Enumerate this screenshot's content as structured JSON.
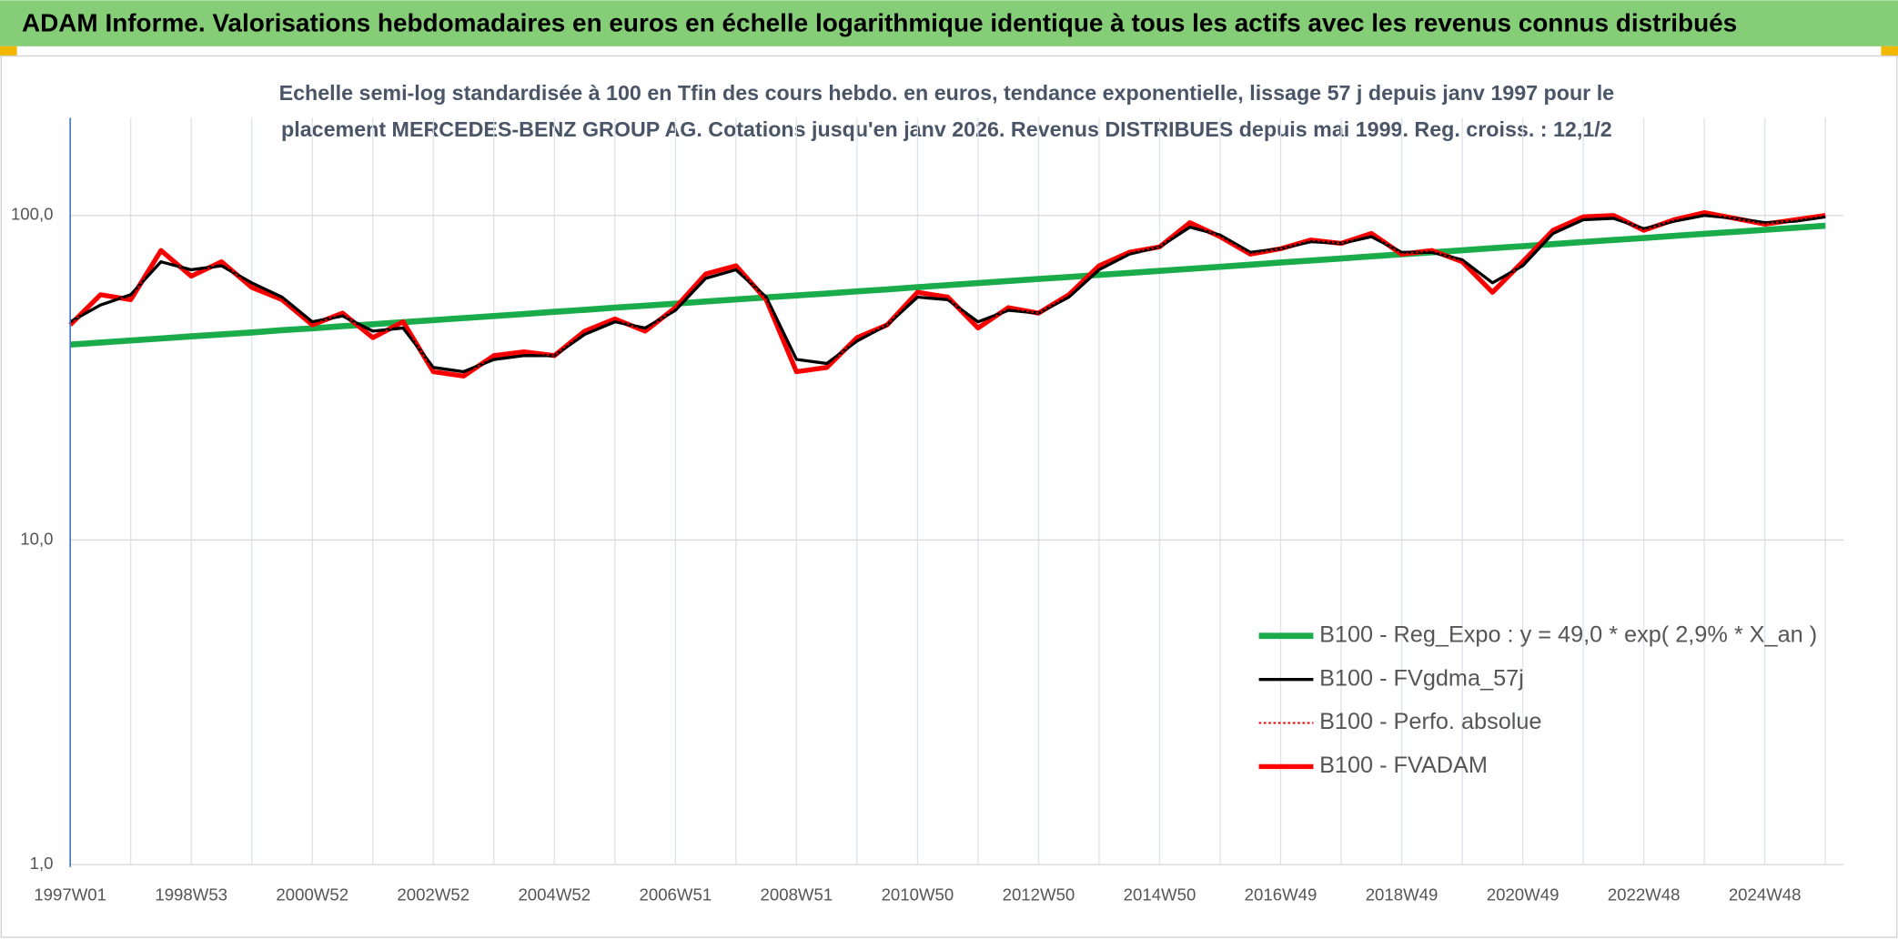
{
  "chart_data": {
    "type": "line",
    "title": "ADAM Informe. Valorisations hebdomadaires en euros en échelle logarithmique identique à tous les actifs avec les revenus connus distribués",
    "subtitle": [
      "Echelle semi-log standardisée à 100 en Tfin des cours hebdo. en euros, tendance exponentielle, lissage 57 j depuis janv 1997 pour le",
      "placement MERCEDES-BENZ GROUP AG. Cotations jusqu'en janv 2026. Revenus DISTRIBUES depuis mai 1999. Reg. croiss. : 12,1/2"
    ],
    "categories": [
      "1997W01",
      null,
      null,
      null,
      "1998W53",
      null,
      null,
      null,
      "2000W52",
      null,
      null,
      null,
      "2002W52",
      null,
      null,
      null,
      "2004W52",
      null,
      null,
      null,
      "2006W51",
      null,
      null,
      null,
      "2008W51",
      null,
      null,
      null,
      "2010W50",
      null,
      null,
      null,
      "2012W50",
      null,
      null,
      null,
      "2014W50",
      null,
      null,
      null,
      "2016W49",
      null,
      null,
      null,
      "2018W49",
      null,
      null,
      null,
      "2020W49",
      null,
      null,
      null,
      "2022W48",
      null,
      null,
      null,
      "2024W48",
      null,
      null
    ],
    "series": [
      {
        "name": "B100 - Reg_Expo : y = 49,0 * exp( 2,9% *  X_an )",
        "color": "#1aab4b",
        "style": "solid",
        "values": [
          40.0,
          40.6,
          41.2,
          41.8,
          42.4,
          43.0,
          43.6,
          44.3,
          44.9,
          45.6,
          46.2,
          46.9,
          47.6,
          48.3,
          49.0,
          49.7,
          50.5,
          51.2,
          52.0,
          52.7,
          53.5,
          54.3,
          55.1,
          55.9,
          56.7,
          57.5,
          58.4,
          59.2,
          60.1,
          61.0,
          61.9,
          62.8,
          63.7,
          64.6,
          65.6,
          66.5,
          67.5,
          68.5,
          69.5,
          70.5,
          71.6,
          72.6,
          73.7,
          74.8,
          75.9,
          77.0,
          78.1,
          79.3,
          80.4,
          81.6,
          82.8,
          84.0,
          85.2,
          86.5,
          87.8,
          89.0,
          90.3,
          91.6,
          93.0
        ]
      },
      {
        "name": "B100 - FVgdma_57j",
        "color": "#000000",
        "style": "solid",
        "values": [
          47,
          53,
          57,
          72,
          68,
          70,
          62,
          56,
          47,
          49,
          44,
          45,
          34,
          33,
          36,
          37,
          37,
          43,
          47,
          45,
          51,
          64,
          68,
          56,
          36,
          35,
          41,
          46,
          56,
          55,
          47,
          51,
          50,
          56,
          68,
          76,
          80,
          92,
          87,
          77,
          79,
          83,
          82,
          86,
          77,
          77,
          73,
          62,
          70,
          88,
          97,
          98,
          91,
          96,
          100,
          98,
          95,
          96,
          99
        ]
      },
      {
        "name": "B100 - Perfo. absolue",
        "color": "#e00000",
        "style": "dotted",
        "values": [
          46,
          57,
          55,
          78,
          65,
          72,
          60,
          55,
          46,
          50,
          42,
          47,
          33,
          32,
          37,
          38,
          37,
          44,
          48,
          44,
          52,
          66,
          70,
          55,
          33,
          34,
          42,
          46,
          58,
          56,
          45,
          52,
          50,
          57,
          70,
          77,
          80,
          95,
          86,
          76,
          79,
          84,
          82,
          88,
          76,
          78,
          72,
          58,
          72,
          90,
          99,
          100,
          90,
          97,
          102,
          98,
          94,
          97,
          100
        ]
      },
      {
        "name": "B100 - FVADAM",
        "color": "#ff0000",
        "style": "solid",
        "values": [
          46,
          57,
          55,
          78,
          65,
          72,
          60,
          55,
          46,
          50,
          42,
          47,
          33,
          32,
          37,
          38,
          37,
          44,
          48,
          44,
          52,
          66,
          70,
          55,
          33,
          34,
          42,
          46,
          58,
          56,
          45,
          52,
          50,
          57,
          70,
          77,
          80,
          95,
          86,
          76,
          79,
          84,
          82,
          88,
          76,
          78,
          72,
          58,
          72,
          90,
          99,
          100,
          90,
          97,
          102,
          98,
          94,
          97,
          100
        ]
      }
    ],
    "log_scale": true,
    "ylim": [
      1,
      200
    ],
    "yticks": [
      {
        "value": 1,
        "label": "1,0"
      },
      {
        "value": 10,
        "label": "10,0"
      },
      {
        "value": 100,
        "label": "100,0"
      }
    ],
    "grid": true,
    "legend": "lower-right"
  }
}
